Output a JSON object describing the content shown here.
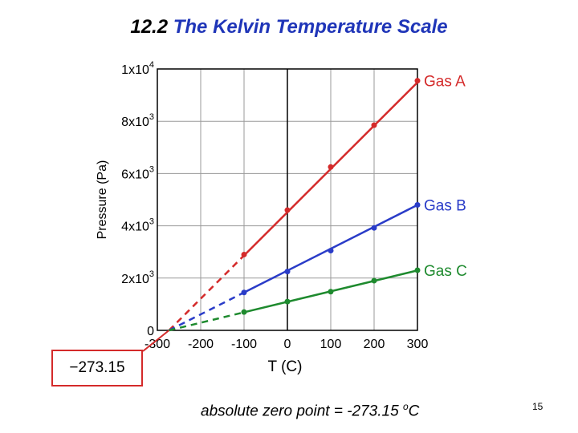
{
  "title": {
    "number": "12.2",
    "text": "The Kelvin Temperature Scale"
  },
  "chart_data": {
    "type": "line",
    "xlabel": "T (C)",
    "ylabel": "Pressure (Pa)",
    "xlim": [
      -300,
      300
    ],
    "ylim": [
      0,
      10000
    ],
    "x_ticks": [
      -300,
      -200,
      -100,
      0,
      100,
      200,
      300
    ],
    "x_tick_labels": [
      "-300",
      "-200",
      "-100",
      "0",
      "100",
      "200",
      "300"
    ],
    "y_ticks": [
      0,
      2000,
      4000,
      6000,
      8000,
      10000
    ],
    "y_tick_labels": [
      {
        "base": "0",
        "exp": ""
      },
      {
        "base": "2x10",
        "exp": "3"
      },
      {
        "base": "4x10",
        "exp": "3"
      },
      {
        "base": "6x10",
        "exp": "3"
      },
      {
        "base": "8x10",
        "exp": "3"
      },
      {
        "base": "1x10",
        "exp": "4"
      }
    ],
    "grid": true,
    "extrapolation_start": -273.15,
    "series": [
      {
        "name": "Gas A",
        "color": "#d42a2a",
        "x": [
          -100,
          0,
          100,
          200,
          300
        ],
        "y": [
          2900,
          4600,
          6250,
          7850,
          9550
        ]
      },
      {
        "name": "Gas B",
        "color": "#2a3cc8",
        "x": [
          -100,
          0,
          100,
          200,
          300
        ],
        "y": [
          1450,
          2250,
          3050,
          3920,
          4800
        ]
      },
      {
        "name": "Gas C",
        "color": "#1e8a2e",
        "x": [
          -100,
          0,
          100,
          200,
          300
        ],
        "y": [
          700,
          1100,
          1480,
          1900,
          2300
        ]
      }
    ]
  },
  "callout": {
    "text": "−273.15",
    "color": "#d42a2a"
  },
  "footnote": {
    "prefix": "absolute zero point = -273.15 ",
    "degree": "o",
    "unit": "C"
  },
  "page_number": "15"
}
